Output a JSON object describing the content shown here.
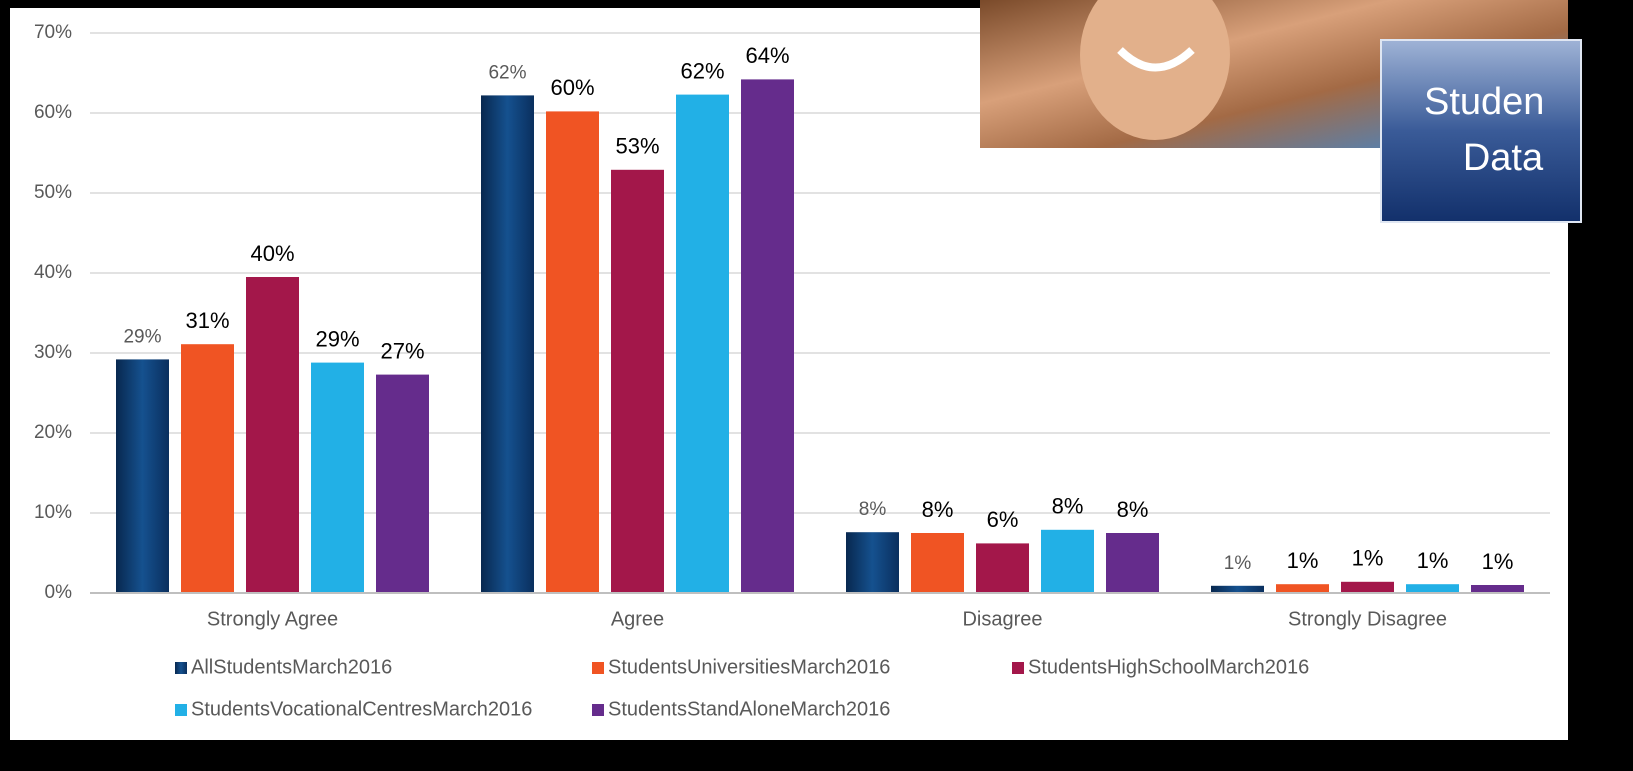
{
  "chart_data": {
    "type": "bar",
    "categories": [
      "Strongly Agree",
      "Agree",
      "Disagree",
      "Strongly Disagree"
    ],
    "series": [
      {
        "name": "AllStudentsMarch2016",
        "color": "#0f3f7c",
        "values": [
          29.2,
          62.2,
          7.6,
          0.9
        ],
        "value_labels": [
          "29%",
          "62%",
          "8%",
          "1%"
        ]
      },
      {
        "name": "StudentsUniversitiesMarch2016",
        "color": "#f05423",
        "values": [
          31.1,
          60.2,
          7.5,
          1.1
        ],
        "value_labels": [
          "31%",
          "60%",
          "8%",
          "1%"
        ]
      },
      {
        "name": "StudentsHighSchoolMarch2016",
        "color": "#a3174a",
        "values": [
          39.5,
          52.9,
          6.2,
          1.4
        ],
        "value_labels": [
          "40%",
          "53%",
          "6%",
          "1%"
        ]
      },
      {
        "name": "StudentsVocationalCentresMarch2016",
        "color": "#22b0e6",
        "values": [
          28.8,
          62.3,
          7.9,
          1.1
        ],
        "value_labels": [
          "29%",
          "62%",
          "8%",
          "1%"
        ]
      },
      {
        "name": "StudentsStandAloneMarch2016",
        "color": "#652c8c",
        "values": [
          27.3,
          64.2,
          7.5,
          1.0
        ],
        "value_labels": [
          "27%",
          "64%",
          "8%",
          "1%"
        ]
      }
    ],
    "ylim": [
      0,
      70
    ],
    "yticks": [
      {
        "value": 0,
        "label": "0%"
      },
      {
        "value": 10,
        "label": "10%"
      },
      {
        "value": 20,
        "label": "20%"
      },
      {
        "value": 30,
        "label": "30%"
      },
      {
        "value": 40,
        "label": "40%"
      },
      {
        "value": 50,
        "label": "50%"
      },
      {
        "value": 60,
        "label": "60%"
      },
      {
        "value": 70,
        "label": "70%"
      }
    ],
    "grid": true,
    "legend": "bottom"
  },
  "overlay": {
    "caption_lines": [
      "Studen",
      "Data"
    ]
  }
}
